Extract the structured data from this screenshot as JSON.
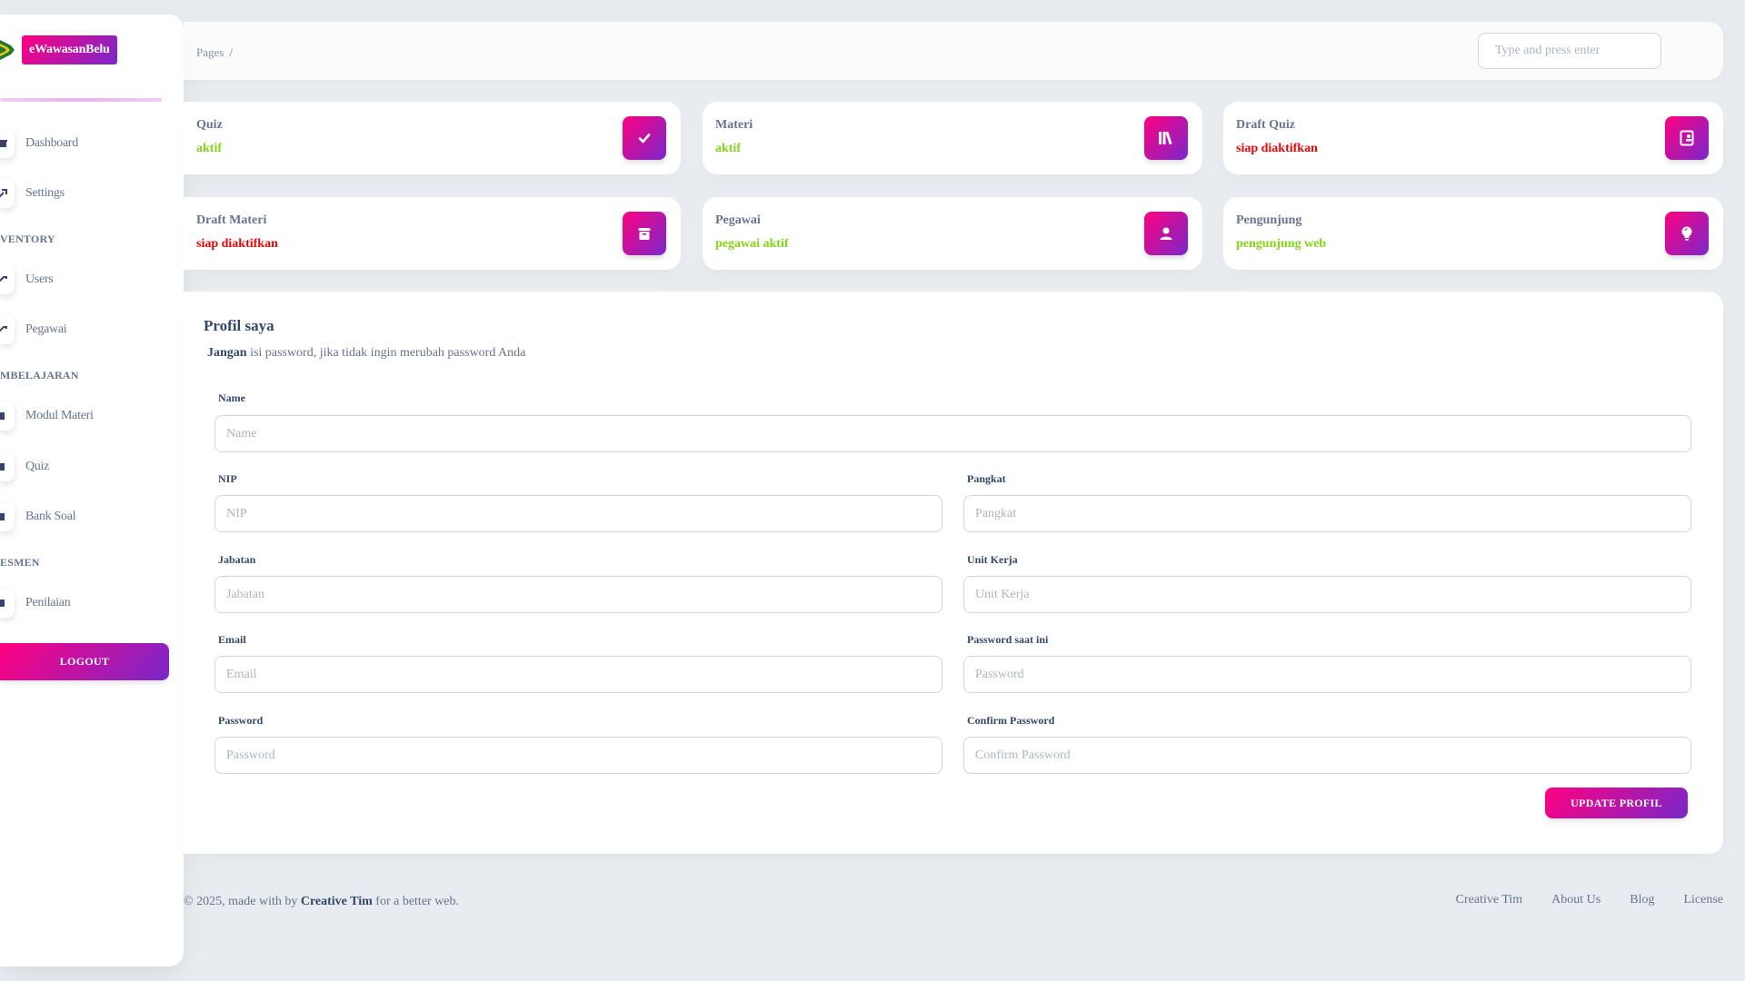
{
  "brand": {
    "name": "eWawasanBelu"
  },
  "sidebar": {
    "items": [
      {
        "label": "Dashboard",
        "icon": "shop-icon"
      },
      {
        "label": "Settings",
        "icon": "settings-icon"
      },
      {
        "label": "Users",
        "icon": "users-icon"
      },
      {
        "label": "Pegawai",
        "icon": "pegawai-icon"
      },
      {
        "label": "Modul Materi",
        "icon": "document-icon"
      },
      {
        "label": "Quiz",
        "icon": "document-icon"
      },
      {
        "label": "Bank Soal",
        "icon": "document-icon"
      },
      {
        "label": "Penilaian",
        "icon": "document-icon"
      }
    ],
    "sections": [
      "VENTORY",
      "MBELAJARAN",
      "ESMEN"
    ],
    "logout_label": "LOGOUT"
  },
  "navbar": {
    "breadcrumb_root": "Pages",
    "breadcrumb_sep": "/",
    "search_placeholder": "Type and press enter"
  },
  "stats": [
    {
      "title": "Quiz",
      "sub": "aktif",
      "status": "green",
      "icon": "check-icon"
    },
    {
      "title": "Materi",
      "sub": "aktif",
      "status": "green",
      "icon": "books-icon"
    },
    {
      "title": "Draft Quiz",
      "sub": "siap diaktifkan",
      "status": "red",
      "icon": "clipboard-icon"
    },
    {
      "title": "Draft Materi",
      "sub": "siap diaktifkan",
      "status": "red",
      "icon": "archive-icon"
    },
    {
      "title": "Pegawai",
      "sub": "pegawai aktif",
      "status": "green",
      "icon": "user-icon"
    },
    {
      "title": "Pengunjung",
      "sub": "pengunjung web",
      "status": "green",
      "icon": "bulb-icon"
    }
  ],
  "profile": {
    "title": "Profil saya",
    "note_bold": "Jangan",
    "note_rest": " isi password, jika tidak ingin merubah password Anda",
    "fields": {
      "name": {
        "label": "Name",
        "placeholder": "Name"
      },
      "nip": {
        "label": "NIP",
        "placeholder": "NIP"
      },
      "pangkat": {
        "label": "Pangkat",
        "placeholder": "Pangkat"
      },
      "jabatan": {
        "label": "Jabatan",
        "placeholder": "Jabatan"
      },
      "unit_kerja": {
        "label": "Unit Kerja",
        "placeholder": "Unit Kerja"
      },
      "email": {
        "label": "Email",
        "placeholder": "Email"
      },
      "current_password": {
        "label": "Password saat ini",
        "placeholder": "Password"
      },
      "password": {
        "label": "Password",
        "placeholder": "Password"
      },
      "confirm_password": {
        "label": "Confirm Password",
        "placeholder": "Confirm Password"
      }
    },
    "submit_label": "UPDATE PROFIL"
  },
  "footer": {
    "copyright_pre": "© 2025, made with by ",
    "author": "Creative Tim",
    "copyright_post": " for a better web.",
    "links": [
      "Creative Tim",
      "About Us",
      "Blog",
      "License"
    ]
  },
  "colors": {
    "accent_start": "#ff0080",
    "accent_end": "#7928ca",
    "status_green": "#82d616",
    "status_red": "#ea0606",
    "background": "#e8ebef"
  }
}
